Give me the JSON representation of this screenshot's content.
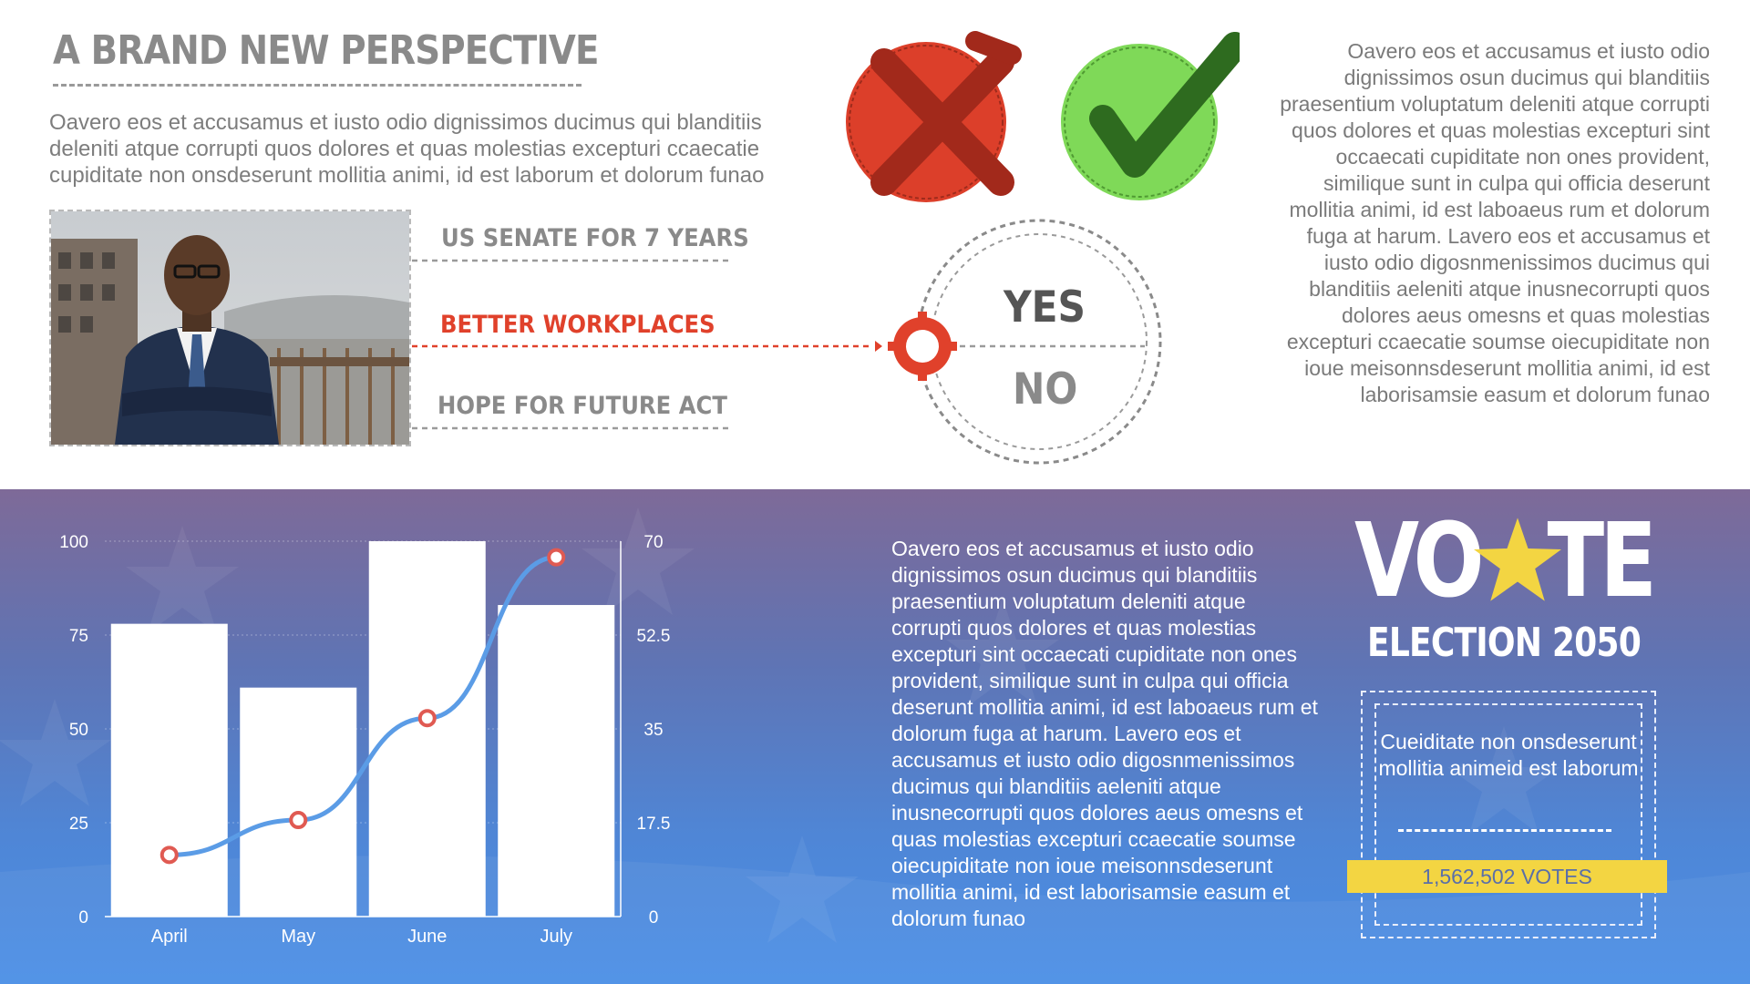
{
  "header": {
    "title": "A BRAND NEW PERSPECTIVE",
    "intro": "Oavero eos et accusamus et iusto odio dignissimos ducimus qui blanditiis deleniti atque corrupti quos dolores et quas molestias excepturi ccaecatie cupiditate non onsdeserunt mollitia animi, id est laborum et dolorum funao"
  },
  "items": [
    {
      "label": "US SENATE FOR 7 YEARS",
      "color": "#8a8a8a"
    },
    {
      "label": "BETTER WORKPLACES",
      "color": "#e0412b"
    },
    {
      "label": "HOPE FOR FUTURE ACT",
      "color": "#8a8a8a"
    }
  ],
  "decision": {
    "yes": "YES",
    "no": "NO",
    "x_icon": "x-mark-icon",
    "check_icon": "check-mark-icon"
  },
  "right_text": "Oavero eos et accusamus et iusto odio dignissimos osun ducimus qui blanditiis praesentium voluptatum deleniti atque corrupti quos dolores et quas molestias excepturi sint occaecati cupiditate non ones provident, similique sunt in culpa qui officia deserunt mollitia animi, id est laboaeus rum et dolorum fuga at harum. Lavero eos et accusamus et iusto odio digosnmenissimos ducimus qui blanditiis aeleniti atque inusnecorrupti quos dolores aeus omesns et quas molestias excepturi ccaecatie soumse oiecupiditate non ioue meisonnsdeserunt mollitia animi, id est laborisamsie easum et dolorum funao",
  "mid_text": "Oavero eos et accusamus et iusto odio dignissimos osun ducimus qui blanditiis praesentium voluptatum deleniti atque corrupti quos dolores et quas molestias excepturi sint occaecati cupiditate non ones provident, similique sunt in culpa qui officia deserunt mollitia animi, id est laboaeus rum et dolorum fuga at harum. Lavero eos et accusamus et iusto odio digosnmenissimos ducimus qui blanditiis aeleniti atque inusnecorrupti quos dolores aeus omesns et quas molestias excepturi ccaecatie soumse oiecupiditate non ioue meisonnsdeserunt mollitia animi, id est laborisamsie easum et dolorum funao",
  "vote": {
    "word_left": "VO",
    "word_right": "TE",
    "subtitle": "ELECTION 2050",
    "box_text": "Cueiditate non onsdeserunt mollitia animeid est laborum",
    "votes": "1,562,502 VOTES",
    "star_color": "#f3d542"
  },
  "colors": {
    "red": "#e0412b",
    "green": "#7ed957",
    "dark_green": "#2e6b1f",
    "line": "#5b9ce6",
    "marker": "#e05a52"
  },
  "chart_data": {
    "type": "bar",
    "categories": [
      "April",
      "May",
      "June",
      "July"
    ],
    "series": [
      {
        "type": "bar",
        "axis": "left",
        "values": [
          78,
          61,
          100,
          83
        ]
      },
      {
        "type": "line",
        "axis": "right",
        "values": [
          11.5,
          18,
          37,
          67
        ]
      }
    ],
    "y_left": {
      "ticks": [
        "0",
        "25",
        "50",
        "75",
        "100"
      ],
      "lim": [
        0,
        100
      ]
    },
    "y_right": {
      "ticks": [
        "0",
        "17.5",
        "35",
        "52.5",
        "70"
      ],
      "lim": [
        0,
        70
      ]
    },
    "grid": true
  }
}
